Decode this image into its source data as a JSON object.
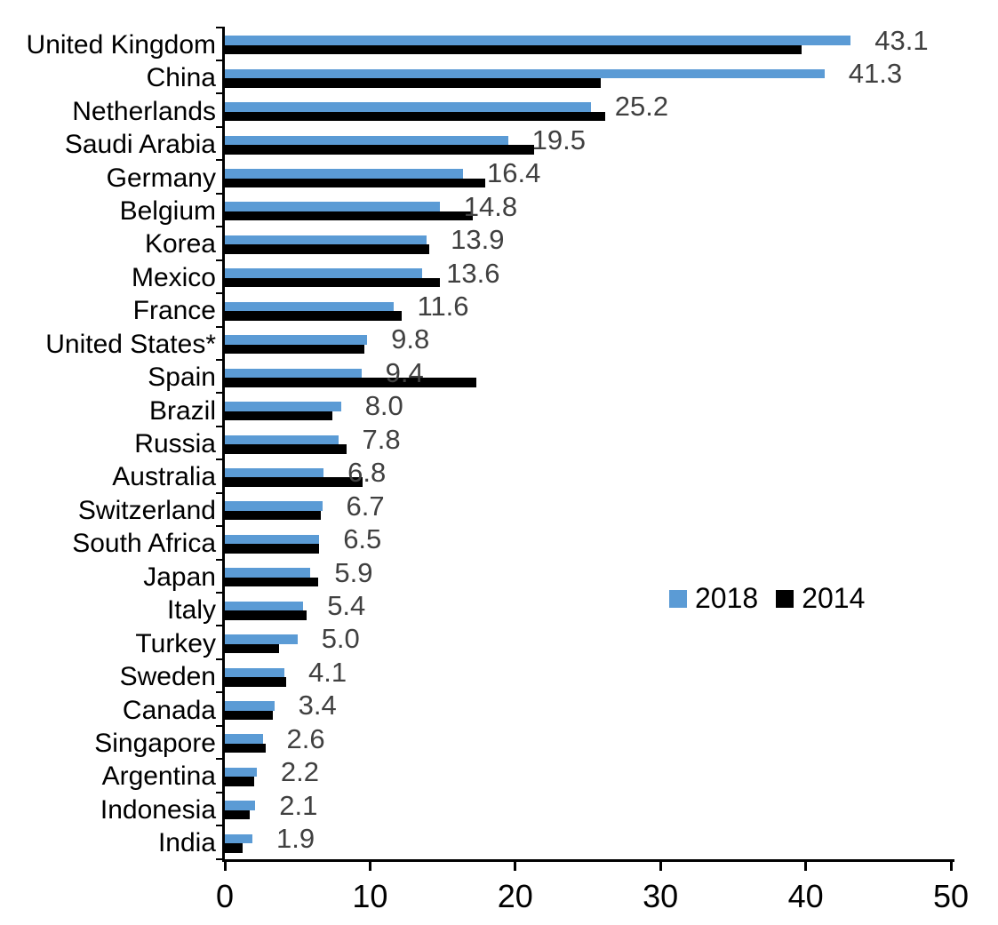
{
  "chart_data": {
    "type": "bar",
    "orientation": "horizontal",
    "title": "",
    "xlabel": "",
    "ylabel": "",
    "grid": false,
    "xlim": [
      0,
      50
    ],
    "x_ticks": [
      "0",
      "10",
      "20",
      "30",
      "40",
      "50"
    ],
    "legend_position": "middle-right",
    "categories": [
      "United Kingdom",
      "China",
      "Netherlands",
      "Saudi Arabia",
      "Germany",
      "Belgium",
      "Korea",
      "Mexico",
      "France",
      "United States*",
      "Spain",
      "Brazil",
      "Russia",
      "Australia",
      "Switzerland",
      "South Africa",
      "Japan",
      "Italy",
      "Turkey",
      "Sweden",
      "Canada",
      "Singapore",
      "Argentina",
      "Indonesia",
      "India"
    ],
    "series": [
      {
        "name": "2018",
        "color": "#5B9BD5",
        "values": [
          43.1,
          41.3,
          25.2,
          19.5,
          16.4,
          14.8,
          13.9,
          13.6,
          11.6,
          9.8,
          9.4,
          8.0,
          7.8,
          6.8,
          6.7,
          6.5,
          5.9,
          5.4,
          5.0,
          4.1,
          3.4,
          2.6,
          2.2,
          2.1,
          1.9
        ]
      },
      {
        "name": "2014",
        "color": "#000000",
        "values": [
          39.7,
          25.9,
          26.2,
          21.3,
          17.9,
          17.1,
          14.1,
          14.8,
          12.2,
          9.6,
          17.3,
          7.4,
          8.4,
          9.5,
          6.6,
          6.5,
          6.4,
          5.6,
          3.7,
          4.2,
          3.3,
          2.8,
          2.0,
          1.7,
          1.2
        ]
      }
    ],
    "data_labels": {
      "series": "2018",
      "color": "#404040",
      "values": [
        "43.1",
        "41.3",
        "25.2",
        "19.5",
        "16.4",
        "14.8",
        "13.9",
        "13.6",
        "11.6",
        "9.8",
        "9.4",
        "8.0",
        "7.8",
        "6.8",
        "6.7",
        "6.5",
        "5.9",
        "5.4",
        "5.0",
        "4.1",
        "3.4",
        "2.6",
        "2.2",
        "2.1",
        "1.9"
      ]
    }
  }
}
